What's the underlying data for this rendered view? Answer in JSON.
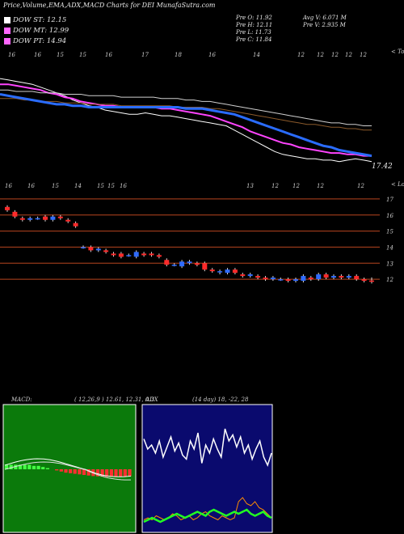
{
  "header": {
    "title": "Price,Volume,EMA,ADX,MACD Charts for DEI MunafaSutra.com",
    "legend": [
      {
        "label": "DOW ST: 12.15",
        "color": "#ffffff"
      },
      {
        "label": "DOW MT: 12.99",
        "color": "#ff66ff"
      },
      {
        "label": "DOW PT: 14.94",
        "color": "#ff66ff"
      }
    ],
    "ohlc": [
      "Pre O: 11.92",
      "Pre H: 12.11",
      "Pre L: 11.73",
      "Pre C: 11.84"
    ],
    "volume": [
      "Avg V: 6.071 M",
      "Pre V: 2.935 M"
    ]
  },
  "top_panel": {
    "date_ticks": [
      "16",
      "16",
      "15",
      "15",
      "16",
      "17",
      "18",
      "16",
      "14",
      "12",
      "12",
      "12",
      "12",
      "12"
    ],
    "corner_label": "< Tops",
    "last_price_label": "17.42"
  },
  "candle_panel": {
    "date_ticks": [
      "16",
      "16",
      "15",
      "14",
      "15",
      "15",
      "16",
      "13",
      "12",
      "12",
      "12",
      "12"
    ],
    "corner_label": "< Lows",
    "price_ticks": [
      "17",
      "16",
      "15",
      "14",
      "13",
      "12"
    ]
  },
  "macd": {
    "label": "MACD:",
    "values": "( 12,26,9 ) 12.61,  12.31,  0.3"
  },
  "adx": {
    "label": "ADX",
    "values": "(14  day) 18,  -22,  28"
  },
  "chart_data": [
    {
      "type": "line",
      "name": "price-ema-overview",
      "x": [
        0,
        10,
        20,
        30,
        40,
        50,
        60,
        70,
        80,
        90,
        100,
        110,
        120,
        130,
        140,
        150,
        160,
        170,
        180,
        190,
        200,
        210,
        220,
        230,
        240,
        250,
        260,
        270,
        280,
        290,
        300,
        310,
        320,
        330,
        340,
        350,
        360,
        370,
        380,
        390,
        400,
        410,
        420,
        430,
        440,
        450,
        460
      ],
      "series": [
        {
          "values": [
            17.6,
            17.5,
            17.4,
            17.3,
            17.2,
            17.0,
            16.8,
            16.6,
            16.4,
            16.1,
            15.9,
            15.7,
            15.6,
            15.4,
            15.3,
            15.2,
            15.1,
            15.1,
            15.2,
            15.1,
            15.0,
            15.0,
            14.9,
            14.8,
            14.7,
            14.6,
            14.5,
            14.4,
            14.3,
            14.0,
            13.7,
            13.4,
            13.1,
            12.8,
            12.5,
            12.3,
            12.2,
            12.1,
            12.0,
            12.0,
            11.9,
            11.9,
            11.8,
            11.9,
            12.0,
            11.9,
            11.8
          ]
        },
        {
          "values": [
            17.2,
            17.2,
            17.1,
            17.0,
            16.9,
            16.8,
            16.6,
            16.5,
            16.3,
            16.2,
            16.0,
            15.9,
            15.8,
            15.7,
            15.7,
            15.6,
            15.6,
            15.6,
            15.6,
            15.6,
            15.5,
            15.5,
            15.4,
            15.3,
            15.2,
            15.1,
            15.0,
            14.8,
            14.6,
            14.4,
            14.2,
            13.9,
            13.7,
            13.5,
            13.3,
            13.1,
            13.0,
            12.8,
            12.7,
            12.6,
            12.5,
            12.4,
            12.4,
            12.3,
            12.3,
            12.2,
            12.2
          ]
        },
        {
          "values": [
            16.2,
            16.2,
            16.2,
            16.1,
            16.1,
            16.0,
            16.0,
            16.0,
            15.9,
            15.9,
            15.9,
            15.8,
            15.8,
            15.8,
            15.8,
            15.7,
            15.7,
            15.7,
            15.7,
            15.7,
            15.7,
            15.7,
            15.6,
            15.6,
            15.6,
            15.6,
            15.5,
            15.5,
            15.4,
            15.3,
            15.2,
            15.1,
            15.0,
            14.9,
            14.8,
            14.7,
            14.6,
            14.5,
            14.4,
            14.4,
            14.3,
            14.2,
            14.2,
            14.1,
            14.1,
            14.0,
            14.0
          ]
        },
        {
          "values": [
            16.8,
            16.8,
            16.7,
            16.7,
            16.7,
            16.6,
            16.6,
            16.6,
            16.5,
            16.5,
            16.5,
            16.4,
            16.4,
            16.4,
            16.4,
            16.3,
            16.3,
            16.3,
            16.3,
            16.3,
            16.2,
            16.2,
            16.2,
            16.1,
            16.1,
            16.0,
            16.0,
            15.9,
            15.8,
            15.7,
            15.6,
            15.5,
            15.4,
            15.3,
            15.2,
            15.1,
            15.0,
            14.9,
            14.8,
            14.7,
            14.6,
            14.5,
            14.5,
            14.4,
            14.4,
            14.3,
            14.3
          ]
        },
        {
          "values": [
            16.5,
            16.4,
            16.3,
            16.2,
            16.1,
            16.0,
            15.9,
            15.8,
            15.8,
            15.7,
            15.7,
            15.6,
            15.6,
            15.6,
            15.6,
            15.6,
            15.6,
            15.6,
            15.6,
            15.6,
            15.6,
            15.6,
            15.6,
            15.5,
            15.5,
            15.5,
            15.4,
            15.3,
            15.2,
            15.1,
            14.9,
            14.7,
            14.5,
            14.3,
            14.1,
            13.9,
            13.7,
            13.5,
            13.3,
            13.1,
            12.9,
            12.8,
            12.6,
            12.5,
            12.4,
            12.3,
            12.2
          ]
        }
      ]
    },
    {
      "type": "candlestick",
      "name": "daily-candles",
      "ylim": [
        11.5,
        17.5
      ],
      "candles": [
        {
          "o": 16.5,
          "c": 16.3,
          "h": 16.6,
          "l": 16.2
        },
        {
          "o": 16.2,
          "c": 15.9,
          "h": 16.3,
          "l": 15.8
        },
        {
          "o": 15.8,
          "c": 15.7,
          "h": 15.9,
          "l": 15.6
        },
        {
          "o": 15.7,
          "c": 15.8,
          "h": 15.9,
          "l": 15.6
        },
        {
          "o": 15.8,
          "c": 15.8,
          "h": 15.9,
          "l": 15.7
        },
        {
          "o": 15.9,
          "c": 15.7,
          "h": 16.0,
          "l": 15.6
        },
        {
          "o": 15.7,
          "c": 15.9,
          "h": 16.0,
          "l": 15.6
        },
        {
          "o": 15.9,
          "c": 15.8,
          "h": 16.0,
          "l": 15.7
        },
        {
          "o": 15.7,
          "c": 15.6,
          "h": 15.8,
          "l": 15.5
        },
        {
          "o": 15.5,
          "c": 15.3,
          "h": 15.6,
          "l": 15.2
        },
        {
          "o": 14.0,
          "c": 14.0,
          "h": 14.1,
          "l": 13.9
        },
        {
          "o": 14.0,
          "c": 13.8,
          "h": 14.1,
          "l": 13.7
        },
        {
          "o": 13.8,
          "c": 13.9,
          "h": 14.0,
          "l": 13.7
        },
        {
          "o": 13.8,
          "c": 13.7,
          "h": 13.9,
          "l": 13.6
        },
        {
          "o": 13.6,
          "c": 13.5,
          "h": 13.7,
          "l": 13.4
        },
        {
          "o": 13.6,
          "c": 13.4,
          "h": 13.7,
          "l": 13.3
        },
        {
          "o": 13.5,
          "c": 13.5,
          "h": 13.6,
          "l": 13.4
        },
        {
          "o": 13.4,
          "c": 13.7,
          "h": 13.8,
          "l": 13.3
        },
        {
          "o": 13.6,
          "c": 13.5,
          "h": 13.7,
          "l": 13.4
        },
        {
          "o": 13.6,
          "c": 13.5,
          "h": 13.7,
          "l": 13.4
        },
        {
          "o": 13.5,
          "c": 13.4,
          "h": 13.6,
          "l": 13.3
        },
        {
          "o": 13.2,
          "c": 12.9,
          "h": 13.3,
          "l": 12.8
        },
        {
          "o": 12.9,
          "c": 12.9,
          "h": 13.0,
          "l": 12.8
        },
        {
          "o": 12.8,
          "c": 13.1,
          "h": 13.2,
          "l": 12.7
        },
        {
          "o": 13.0,
          "c": 13.1,
          "h": 13.2,
          "l": 12.9
        },
        {
          "o": 13.0,
          "c": 12.9,
          "h": 13.1,
          "l": 12.8
        },
        {
          "o": 13.0,
          "c": 12.6,
          "h": 13.1,
          "l": 12.5
        },
        {
          "o": 12.6,
          "c": 12.5,
          "h": 12.7,
          "l": 12.4
        },
        {
          "o": 12.5,
          "c": 12.5,
          "h": 12.6,
          "l": 12.3
        },
        {
          "o": 12.4,
          "c": 12.6,
          "h": 12.7,
          "l": 12.3
        },
        {
          "o": 12.6,
          "c": 12.4,
          "h": 12.7,
          "l": 12.3
        },
        {
          "o": 12.3,
          "c": 12.2,
          "h": 12.4,
          "l": 12.1
        },
        {
          "o": 12.2,
          "c": 12.3,
          "h": 12.4,
          "l": 12.1
        },
        {
          "o": 12.2,
          "c": 12.1,
          "h": 12.3,
          "l": 12.0
        },
        {
          "o": 12.1,
          "c": 12.0,
          "h": 12.2,
          "l": 11.9
        },
        {
          "o": 12.0,
          "c": 12.1,
          "h": 12.2,
          "l": 11.9
        },
        {
          "o": 12.0,
          "c": 12.0,
          "h": 12.1,
          "l": 11.9
        },
        {
          "o": 12.0,
          "c": 11.9,
          "h": 12.1,
          "l": 11.8
        },
        {
          "o": 11.9,
          "c": 12.0,
          "h": 12.1,
          "l": 11.8
        },
        {
          "o": 11.9,
          "c": 12.2,
          "h": 12.3,
          "l": 11.8
        },
        {
          "o": 12.1,
          "c": 12.0,
          "h": 12.2,
          "l": 11.9
        },
        {
          "o": 12.0,
          "c": 12.3,
          "h": 12.4,
          "l": 11.9
        },
        {
          "o": 12.3,
          "c": 12.1,
          "h": 12.4,
          "l": 12.0
        },
        {
          "o": 12.1,
          "c": 12.2,
          "h": 12.3,
          "l": 12.0
        },
        {
          "o": 12.2,
          "c": 12.1,
          "h": 12.3,
          "l": 12.0
        },
        {
          "o": 12.1,
          "c": 12.2,
          "h": 12.3,
          "l": 12.0
        },
        {
          "o": 12.2,
          "c": 12.0,
          "h": 12.3,
          "l": 11.9
        },
        {
          "o": 12.0,
          "c": 11.9,
          "h": 12.1,
          "l": 11.8
        },
        {
          "o": 11.92,
          "c": 11.84,
          "h": 12.11,
          "l": 11.73
        }
      ]
    },
    {
      "type": "bar",
      "name": "macd-histogram",
      "values": [
        0.4,
        0.4,
        0.4,
        0.4,
        0.4,
        0.4,
        0.3,
        0.3,
        0.2,
        0.1,
        0,
        -0.1,
        -0.2,
        -0.3,
        -0.35,
        -0.4,
        -0.45,
        -0.5,
        -0.55,
        -0.6,
        -0.62,
        -0.65,
        -0.66,
        -0.66,
        -0.65,
        -0.64,
        -0.63,
        -0.62
      ]
    },
    {
      "type": "line",
      "name": "adx",
      "series": [
        {
          "values": [
            45,
            40,
            42,
            38,
            44,
            36,
            41,
            46,
            39,
            43,
            37,
            35,
            44,
            40,
            48,
            33,
            42,
            38,
            45,
            40,
            36,
            50,
            44,
            47,
            41,
            46,
            38,
            42,
            35,
            40,
            44,
            36,
            32,
            38
          ]
        },
        {
          "values": [
            5,
            6,
            5,
            7,
            6,
            5,
            6,
            8,
            7,
            5,
            6,
            7,
            5,
            6,
            8,
            9,
            7,
            6,
            5,
            7,
            6,
            5,
            6,
            14,
            16,
            13,
            12,
            14,
            11,
            10,
            8,
            6
          ]
        },
        {
          "values": [
            4,
            5,
            6,
            5,
            4,
            5,
            6,
            7,
            8,
            7,
            6,
            7,
            8,
            9,
            8,
            7,
            9,
            10,
            9,
            8,
            7,
            8,
            9,
            8,
            9,
            10,
            8,
            7,
            8,
            9,
            7,
            6
          ]
        }
      ]
    }
  ]
}
